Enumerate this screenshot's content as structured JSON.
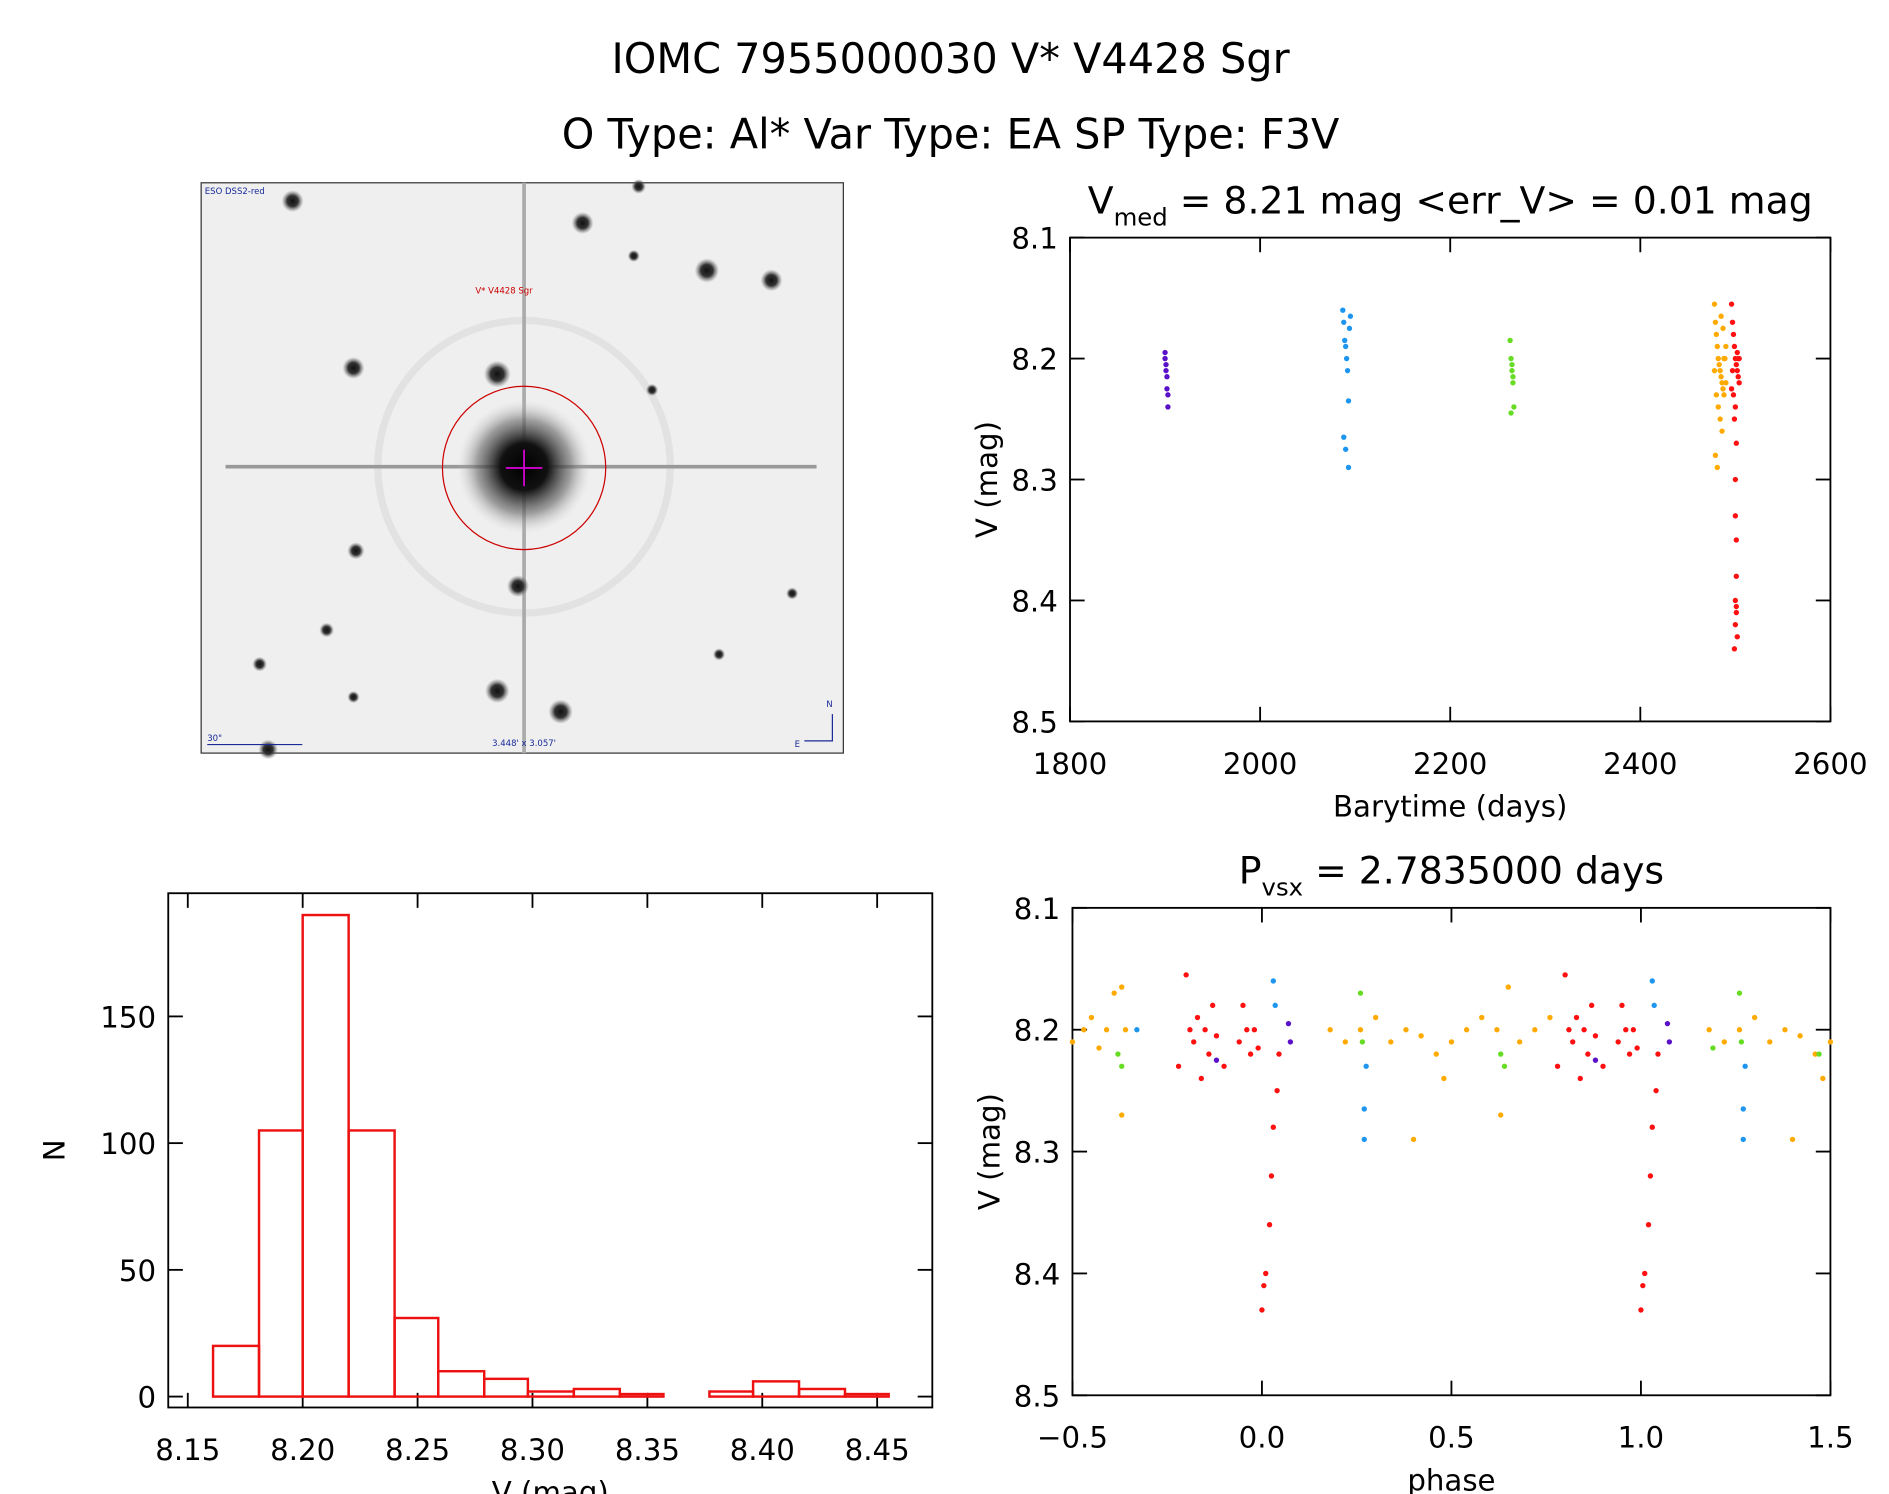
{
  "header": {
    "title": "IOMC 7955000030   V* V4428 Sgr",
    "subtitle": "O Type: Al*  Var Type: EA  SP Type: F3V"
  },
  "image": {
    "survey": "ESO DSS2-red",
    "target": "V* V4428 Sgr",
    "scale": "30\"",
    "size": "3.448' x 3.057'",
    "north": "N",
    "east": "E"
  },
  "chart_data": [
    {
      "type": "scatter",
      "title": "V",
      "title_subscript": "med",
      "title_rest": " = 8.21 mag <err_V> = 0.01 mag",
      "xlabel": "Barytime (days)",
      "ylabel": "V (mag)",
      "invert_y": true,
      "xlim": [
        1800,
        2600
      ],
      "xticks": [
        1800,
        2000,
        2200,
        2400,
        2600
      ],
      "ylim": [
        8.1,
        8.5
      ],
      "yticks": [
        8.1,
        8.2,
        8.3,
        8.4,
        8.5
      ],
      "series": [
        {
          "color": "#5a10c8",
          "x": [
            1900,
            1900,
            1901,
            1901,
            1902,
            1902,
            1903,
            1903
          ],
          "values": [
            8.195,
            8.2,
            8.205,
            8.21,
            8.215,
            8.225,
            8.23,
            8.24
          ]
        },
        {
          "color": "#1e96f0",
          "x": [
            2087,
            2088,
            2089,
            2090,
            2091,
            2092,
            2093,
            2094,
            2095,
            2088,
            2090,
            2093
          ],
          "values": [
            8.16,
            8.17,
            8.185,
            8.19,
            8.2,
            8.21,
            8.235,
            8.175,
            8.165,
            8.265,
            8.275,
            8.29
          ]
        },
        {
          "color": "#66dd22",
          "x": [
            2263,
            2264,
            2265,
            2265,
            2266,
            2266,
            2267,
            2264
          ],
          "values": [
            8.185,
            8.2,
            8.205,
            8.21,
            8.215,
            8.22,
            8.24,
            8.245
          ]
        },
        {
          "color": "#ffaa00",
          "x": [
            2478,
            2479,
            2480,
            2481,
            2482,
            2483,
            2484,
            2485,
            2486,
            2487,
            2488,
            2489,
            2490,
            2478,
            2480,
            2482,
            2484,
            2486,
            2488,
            2490,
            2479,
            2481,
            2485,
            2487
          ],
          "values": [
            8.155,
            8.17,
            8.18,
            8.19,
            8.2,
            8.205,
            8.21,
            8.215,
            8.22,
            8.225,
            8.23,
            8.2,
            8.19,
            8.21,
            8.23,
            8.24,
            8.25,
            8.26,
            8.2,
            8.22,
            8.28,
            8.29,
            8.165,
            8.175
          ]
        },
        {
          "color": "#ff1010",
          "x": [
            2496,
            2497,
            2498,
            2499,
            2500,
            2501,
            2502,
            2503,
            2504,
            2496,
            2498,
            2500,
            2502,
            2504,
            2497,
            2499,
            2501,
            2503,
            2500,
            2500,
            2501,
            2501,
            2500,
            2501,
            2500,
            2502,
            2499,
            2501
          ],
          "values": [
            8.155,
            8.17,
            8.18,
            8.19,
            8.2,
            8.205,
            8.21,
            8.215,
            8.22,
            8.225,
            8.23,
            8.24,
            8.195,
            8.2,
            8.21,
            8.25,
            8.27,
            8.2,
            8.3,
            8.33,
            8.35,
            8.38,
            8.4,
            8.41,
            8.42,
            8.43,
            8.44,
            8.405
          ]
        }
      ]
    },
    {
      "type": "scatter",
      "title": "P",
      "title_subscript": "vsx",
      "title_rest": " = 2.7835000 days",
      "xlabel": "phase",
      "ylabel": "V (mag)",
      "invert_y": true,
      "xlim": [
        -0.5,
        1.5
      ],
      "xticks": [
        {
          "value": -0.5,
          "label": "−0.5"
        },
        {
          "value": 0,
          "label": "0.0"
        },
        0.5,
        {
          "value": 1,
          "label": "1.0"
        },
        1.5
      ],
      "ylim": [
        8.1,
        8.5
      ],
      "yticks": [
        8.1,
        8.2,
        8.3,
        8.4,
        8.5
      ],
      "series": [
        {
          "color": "#ff1010",
          "x": [
            -0.22,
            -0.2,
            -0.19,
            -0.18,
            -0.17,
            -0.16,
            -0.15,
            -0.14,
            -0.13,
            -0.12,
            -0.1,
            -0.06,
            -0.05,
            -0.04,
            -0.03,
            -0.02,
            -0.01,
            0.0,
            0.005,
            0.01,
            0.02,
            0.025,
            0.03,
            0.04,
            0.045,
            0.78,
            0.8,
            0.81,
            0.82,
            0.83,
            0.84,
            0.85,
            0.86,
            0.87,
            0.88,
            0.9,
            0.94,
            0.95,
            0.96,
            0.97,
            0.98,
            0.99,
            1.0,
            1.005,
            1.01,
            1.02,
            1.025,
            1.03,
            1.04,
            1.045
          ],
          "values": [
            8.23,
            8.155,
            8.2,
            8.21,
            8.19,
            8.24,
            8.2,
            8.22,
            8.18,
            8.205,
            8.23,
            8.21,
            8.18,
            8.2,
            8.22,
            8.2,
            8.215,
            8.43,
            8.41,
            8.4,
            8.36,
            8.32,
            8.28,
            8.25,
            8.22,
            8.23,
            8.155,
            8.2,
            8.21,
            8.19,
            8.24,
            8.2,
            8.22,
            8.18,
            8.205,
            8.23,
            8.21,
            8.18,
            8.2,
            8.22,
            8.2,
            8.215,
            8.43,
            8.41,
            8.4,
            8.36,
            8.32,
            8.28,
            8.25,
            8.22
          ]
        },
        {
          "color": "#ffaa00",
          "x": [
            -0.5,
            -0.47,
            -0.45,
            -0.43,
            -0.41,
            -0.39,
            -0.37,
            -0.36,
            -0.37,
            0.18,
            0.22,
            0.26,
            0.3,
            0.34,
            0.38,
            0.4,
            0.42,
            0.46,
            0.48,
            0.5,
            0.54,
            0.58,
            0.62,
            0.63,
            0.65,
            0.68,
            0.72,
            0.76,
            1.18,
            1.22,
            1.26,
            1.3,
            1.34,
            1.38,
            1.4,
            1.42,
            1.46,
            1.48,
            1.5
          ],
          "values": [
            8.21,
            8.2,
            8.19,
            8.215,
            8.2,
            8.17,
            8.165,
            8.2,
            8.27,
            8.2,
            8.21,
            8.2,
            8.19,
            8.21,
            8.2,
            8.29,
            8.205,
            8.22,
            8.24,
            8.21,
            8.2,
            8.19,
            8.2,
            8.27,
            8.165,
            8.21,
            8.2,
            8.19,
            8.2,
            8.21,
            8.2,
            8.19,
            8.21,
            8.2,
            8.29,
            8.205,
            8.22,
            8.24,
            8.21
          ]
        },
        {
          "color": "#1e96f0",
          "x": [
            -0.33,
            0.03,
            0.035,
            0.27,
            0.27,
            0.275,
            1.03,
            1.035,
            1.27,
            1.27,
            1.275
          ],
          "values": [
            8.2,
            8.16,
            8.18,
            8.265,
            8.29,
            8.23,
            8.16,
            8.18,
            8.265,
            8.29,
            8.23
          ]
        },
        {
          "color": "#5a10c8",
          "x": [
            -0.12,
            0.07,
            0.075,
            0.88,
            1.07,
            1.075
          ],
          "values": [
            8.225,
            8.195,
            8.21,
            8.225,
            8.195,
            8.21
          ]
        },
        {
          "color": "#66dd22",
          "x": [
            -0.38,
            -0.37,
            0.26,
            0.265,
            0.63,
            0.64,
            1.19,
            1.26,
            1.265,
            1.47
          ],
          "values": [
            8.22,
            8.23,
            8.17,
            8.21,
            8.22,
            8.23,
            8.215,
            8.17,
            8.21,
            8.22
          ]
        }
      ]
    },
    {
      "type": "histogram",
      "xlabel": "V (mag)",
      "ylabel": "N",
      "color": "#ee1111",
      "bins": [
        8.161,
        8.181,
        8.2,
        8.22,
        8.24,
        8.259,
        8.279,
        8.298,
        8.318,
        8.338,
        8.357,
        8.377,
        8.396,
        8.416,
        8.436,
        8.455
      ],
      "values": [
        20,
        105,
        190,
        105,
        31,
        10,
        7,
        2,
        3,
        1,
        0,
        2,
        6,
        3,
        1
      ],
      "xlim": [
        8.1415,
        8.474
      ],
      "xticks": [
        8.15,
        {
          "value": 8.2,
          "label": "8.20"
        },
        8.25,
        {
          "value": 8.3,
          "label": "8.30"
        },
        8.35,
        {
          "value": 8.4,
          "label": "8.40"
        },
        8.45
      ],
      "ylim": [
        -4.3,
        198.6
      ],
      "yticks": [
        0,
        50,
        100,
        150
      ]
    }
  ]
}
